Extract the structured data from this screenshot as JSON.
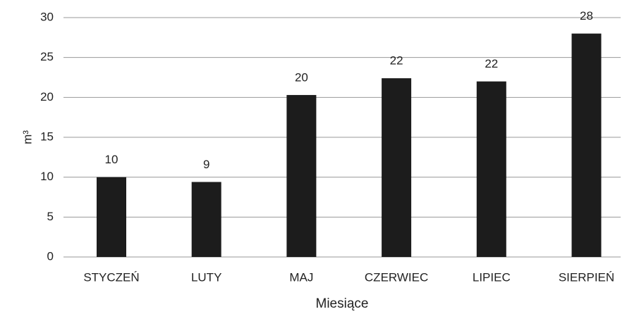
{
  "chart_data": {
    "type": "bar",
    "x_label": "Miesiące",
    "y_label": "m³",
    "categories": [
      "STYCZEŃ",
      "LUTY",
      "MAJ",
      "CZERWIEC",
      "LIPIEC",
      "SIERPIEŃ"
    ],
    "values": [
      10,
      9.4,
      20.3,
      22.4,
      22,
      28
    ],
    "value_labels": [
      "10",
      "9",
      "20",
      "22",
      "22",
      "28"
    ],
    "color": "#1c1c1c",
    "ylim": [
      0,
      30
    ],
    "yticks": [
      0,
      5,
      10,
      15,
      20,
      25,
      30
    ],
    "grid": true
  }
}
